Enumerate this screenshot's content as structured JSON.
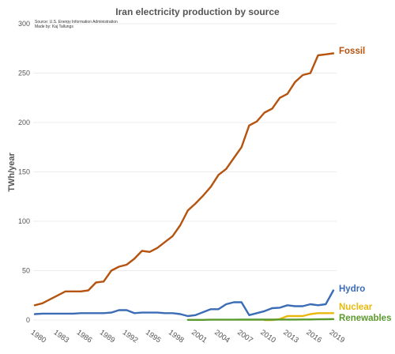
{
  "chart_data": {
    "type": "line",
    "title": "Iran electricity production by source",
    "source": "Source: U.S. Energy Information Administration",
    "made_by": "Made by: Kaj Tallungs",
    "ylabel": "TWh/year",
    "xlabel": "",
    "ylim": [
      0,
      300
    ],
    "xlim": [
      1980,
      2019
    ],
    "yticks": [
      "0",
      "50",
      "100",
      "150",
      "200",
      "250",
      "300"
    ],
    "xticks": [
      "1980",
      "1983",
      "1986",
      "1989",
      "1992",
      "1995",
      "1998",
      "2001",
      "2004",
      "2007",
      "2010",
      "2013",
      "2016",
      "2019"
    ],
    "grid": true,
    "legend": "direct labels at line ends",
    "series": [
      {
        "name": "Fossil",
        "color": "#b5530f",
        "x": [
          1980,
          1981,
          1982,
          1983,
          1984,
          1985,
          1986,
          1987,
          1988,
          1989,
          1990,
          1991,
          1992,
          1993,
          1994,
          1995,
          1996,
          1997,
          1998,
          1999,
          2000,
          2001,
          2002,
          2003,
          2004,
          2005,
          2006,
          2007,
          2008,
          2009,
          2010,
          2011,
          2012,
          2013,
          2014,
          2015,
          2016,
          2017,
          2018,
          2019
        ],
        "values": [
          15,
          17,
          21,
          25,
          29,
          29,
          29,
          30,
          38,
          39,
          50,
          54,
          56,
          62,
          70,
          69,
          73,
          79,
          85,
          96,
          111,
          118,
          126,
          135,
          147,
          153,
          164,
          175,
          197,
          201,
          210,
          214,
          225,
          229,
          241,
          248,
          250,
          268,
          269,
          270
        ]
      },
      {
        "name": "Hydro",
        "color": "#3b6cb6",
        "x": [
          1980,
          1981,
          1982,
          1983,
          1984,
          1985,
          1986,
          1987,
          1988,
          1989,
          1990,
          1991,
          1992,
          1993,
          1994,
          1995,
          1996,
          1997,
          1998,
          1999,
          2000,
          2001,
          2002,
          2003,
          2004,
          2005,
          2006,
          2007,
          2008,
          2009,
          2010,
          2011,
          2012,
          2013,
          2014,
          2015,
          2016,
          2017,
          2018,
          2019
        ],
        "values": [
          6,
          6.5,
          6.5,
          6.5,
          6.5,
          6.5,
          7,
          7,
          7,
          7,
          7.5,
          10,
          10,
          7,
          7.5,
          7.5,
          7.5,
          7,
          7,
          6,
          4,
          5,
          8,
          11,
          11,
          16,
          18,
          18,
          5,
          7,
          9,
          12,
          12.5,
          15,
          14,
          14,
          16,
          15,
          16,
          30
        ]
      },
      {
        "name": "Nuclear",
        "color": "#e8b90c",
        "x": [
          2010,
          2011,
          2012,
          2013,
          2014,
          2015,
          2016,
          2017,
          2018,
          2019
        ],
        "values": [
          0,
          0,
          1,
          4,
          4,
          4,
          6,
          7,
          7,
          7
        ]
      },
      {
        "name": "Renewables",
        "color": "#5a9a2c",
        "x": [
          2000,
          2001,
          2002,
          2003,
          2004,
          2005,
          2006,
          2007,
          2008,
          2009,
          2010,
          2011,
          2012,
          2013,
          2014,
          2015,
          2016,
          2017,
          2018,
          2019
        ],
        "values": [
          0.2,
          0.2,
          0.2,
          0.3,
          0.3,
          0.3,
          0.3,
          0.4,
          0.4,
          0.4,
          0.4,
          0.4,
          0.5,
          0.5,
          0.5,
          0.6,
          0.6,
          0.7,
          0.8,
          1
        ]
      }
    ]
  }
}
